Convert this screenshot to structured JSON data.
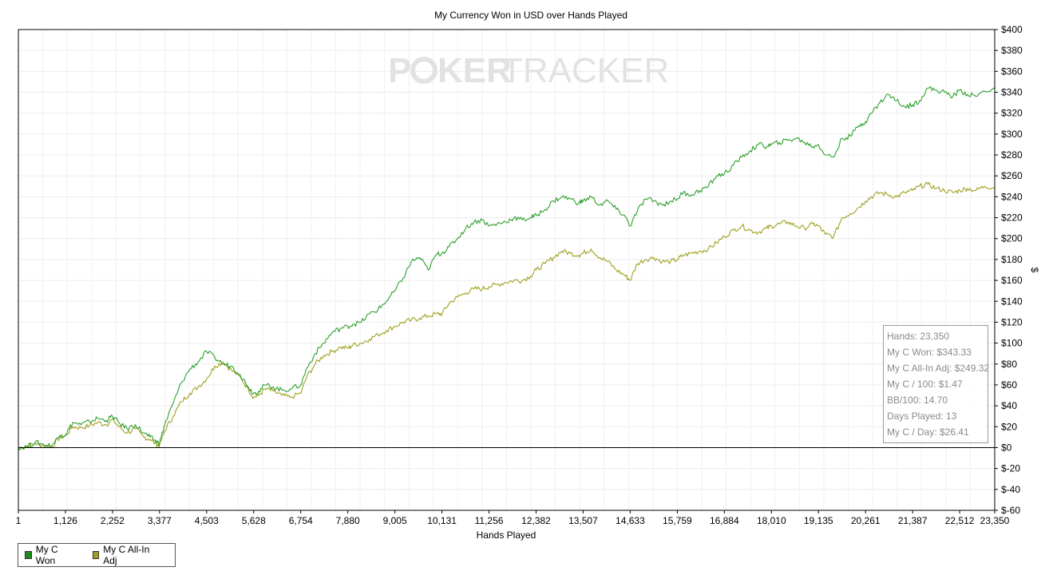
{
  "chart_data": {
    "type": "line",
    "title": "My Currency Won in USD over Hands Played",
    "xlabel": "Hands Played",
    "ylabel": "$",
    "xlim": [
      1,
      23350
    ],
    "ylim": [
      -60,
      400
    ],
    "x_ticks": [
      "1",
      "1,126",
      "2,252",
      "3,377",
      "4,503",
      "5,628",
      "6,754",
      "7,880",
      "9,005",
      "10,131",
      "11,256",
      "12,382",
      "13,507",
      "14,633",
      "15,759",
      "16,884",
      "18,010",
      "19,135",
      "20,261",
      "21,387",
      "22,512",
      "23,350"
    ],
    "x_tick_values": [
      1,
      1126,
      2252,
      3377,
      4503,
      5628,
      6754,
      7880,
      9005,
      10131,
      11256,
      12382,
      13507,
      14633,
      15759,
      16884,
      18010,
      19135,
      20261,
      21387,
      22512,
      23350
    ],
    "y_ticks": [
      "$400",
      "$380",
      "$360",
      "$340",
      "$320",
      "$300",
      "$280",
      "$260",
      "$240",
      "$220",
      "$200",
      "$180",
      "$160",
      "$140",
      "$120",
      "$100",
      "$80",
      "$60",
      "$40",
      "$20",
      "$0",
      "$-20",
      "$-40",
      "$-60"
    ],
    "y_tick_values": [
      400,
      380,
      360,
      340,
      320,
      300,
      280,
      260,
      240,
      220,
      200,
      180,
      160,
      140,
      120,
      100,
      80,
      60,
      40,
      20,
      0,
      -20,
      -40,
      -60
    ],
    "grid": true,
    "legend_position": "bottom-left",
    "series": [
      {
        "name": "My C Won",
        "color": "#2ca02c",
        "x": [
          1,
          200,
          400,
          600,
          800,
          1000,
          1126,
          1300,
          1500,
          1700,
          1900,
          2100,
          2252,
          2400,
          2600,
          2800,
          3000,
          3150,
          3300,
          3377,
          3500,
          3700,
          3900,
          4100,
          4300,
          4503,
          4700,
          4900,
          5100,
          5300,
          5500,
          5628,
          5750,
          5900,
          6100,
          6300,
          6500,
          6754,
          6900,
          7100,
          7300,
          7500,
          7700,
          7880,
          8000,
          8200,
          8400,
          8600,
          8800,
          9005,
          9200,
          9400,
          9600,
          9800,
          10000,
          10131,
          10300,
          10500,
          10700,
          10900,
          11100,
          11256,
          11450,
          11650,
          11850,
          12050,
          12250,
          12382,
          12600,
          12800,
          13000,
          13200,
          13400,
          13507,
          13700,
          13900,
          14100,
          14300,
          14500,
          14633,
          14800,
          15000,
          15200,
          15400,
          15600,
          15759,
          15900,
          16100,
          16300,
          16500,
          16700,
          16884,
          17100,
          17300,
          17500,
          17700,
          17900,
          18010,
          18200,
          18400,
          18600,
          18800,
          19000,
          19135,
          19300,
          19500,
          19700,
          19900,
          20100,
          20261,
          20400,
          20600,
          20800,
          21000,
          21200,
          21387,
          21550,
          21750,
          21950,
          22150,
          22350,
          22512,
          22700,
          22900,
          23100,
          23350
        ],
        "y": [
          0,
          1,
          5,
          3,
          2,
          12,
          12,
          24,
          22,
          25,
          28,
          26,
          30,
          24,
          18,
          22,
          14,
          10,
          6,
          4,
          22,
          42,
          62,
          75,
          82,
          92,
          86,
          80,
          78,
          70,
          58,
          52,
          54,
          60,
          58,
          55,
          56,
          60,
          76,
          90,
          100,
          110,
          114,
          116,
          118,
          120,
          128,
          132,
          140,
          150,
          162,
          178,
          182,
          170,
          185,
          186,
          192,
          200,
          210,
          216,
          218,
          212,
          214,
          216,
          220,
          218,
          220,
          222,
          228,
          236,
          240,
          238,
          234,
          236,
          240,
          232,
          236,
          228,
          222,
          212,
          226,
          238,
          236,
          232,
          236,
          238,
          244,
          242,
          246,
          250,
          260,
          262,
          270,
          278,
          284,
          290,
          288,
          290,
          292,
          294,
          296,
          292,
          288,
          290,
          280,
          278,
          296,
          298,
          308,
          312,
          320,
          330,
          338,
          332,
          326,
          328,
          332,
          344,
          342,
          340,
          336,
          342,
          338,
          336,
          341,
          344
        ]
      },
      {
        "name": "My C All-In Adj",
        "color": "#a0a020",
        "x": [
          1,
          200,
          400,
          600,
          800,
          1000,
          1126,
          1300,
          1500,
          1700,
          1900,
          2100,
          2252,
          2400,
          2600,
          2800,
          3000,
          3150,
          3300,
          3377,
          3500,
          3700,
          3900,
          4100,
          4300,
          4503,
          4700,
          4900,
          5100,
          5300,
          5500,
          5628,
          5750,
          5900,
          6100,
          6300,
          6500,
          6754,
          6900,
          7100,
          7300,
          7500,
          7700,
          7880,
          8000,
          8200,
          8400,
          8600,
          8800,
          9005,
          9200,
          9400,
          9600,
          9800,
          10000,
          10131,
          10300,
          10500,
          10700,
          10900,
          11100,
          11256,
          11450,
          11650,
          11850,
          12050,
          12250,
          12382,
          12600,
          12800,
          13000,
          13200,
          13400,
          13507,
          13700,
          13900,
          14100,
          14300,
          14500,
          14633,
          14800,
          15000,
          15200,
          15400,
          15600,
          15759,
          15900,
          16100,
          16300,
          16500,
          16700,
          16884,
          17100,
          17300,
          17500,
          17700,
          17900,
          18010,
          18200,
          18400,
          18600,
          18800,
          19000,
          19135,
          19300,
          19500,
          19700,
          19900,
          20100,
          20261,
          20400,
          20600,
          20800,
          21000,
          21200,
          21387,
          21550,
          21750,
          21950,
          22150,
          22350,
          22512,
          22700,
          22900,
          23100,
          23350
        ],
        "y": [
          0,
          1,
          4,
          2,
          1,
          10,
          11,
          20,
          19,
          21,
          24,
          22,
          27,
          20,
          14,
          18,
          10,
          8,
          3,
          2,
          16,
          30,
          44,
          52,
          58,
          66,
          78,
          82,
          74,
          68,
          56,
          48,
          50,
          56,
          54,
          50,
          48,
          52,
          68,
          80,
          88,
          92,
          96,
          95,
          98,
          100,
          104,
          108,
          112,
          116,
          120,
          122,
          124,
          126,
          128,
          128,
          138,
          144,
          148,
          152,
          152,
          154,
          156,
          158,
          160,
          160,
          164,
          170,
          176,
          182,
          188,
          186,
          184,
          186,
          190,
          182,
          178,
          170,
          165,
          160,
          176,
          180,
          182,
          178,
          178,
          180,
          184,
          186,
          188,
          190,
          196,
          202,
          208,
          212,
          208,
          206,
          210,
          212,
          214,
          216,
          212,
          210,
          214,
          212,
          204,
          202,
          220,
          224,
          230,
          236,
          240,
          244,
          242,
          240,
          244,
          246,
          250,
          252,
          248,
          246,
          244,
          246,
          248,
          246,
          250,
          249
        ]
      }
    ]
  },
  "stats": {
    "hands": "Hands: 23,350",
    "won": "My C Won: $343.33",
    "allin_adj": "My C All-In Adj: $249.32",
    "per100": "My C / 100: $1.47",
    "bb100": "BB/100: 14.70",
    "days": "Days Played: 13",
    "per_day": "My C / Day: $26.41"
  },
  "watermark": {
    "left": "P",
    "middle": "KER",
    "right": "TRACKER",
    "color": "#e2e2e2"
  },
  "legend": {
    "items": [
      {
        "label": "My C Won",
        "color": "#1c8c1c"
      },
      {
        "label": "My C All-In Adj",
        "color": "#a0a020"
      }
    ]
  }
}
